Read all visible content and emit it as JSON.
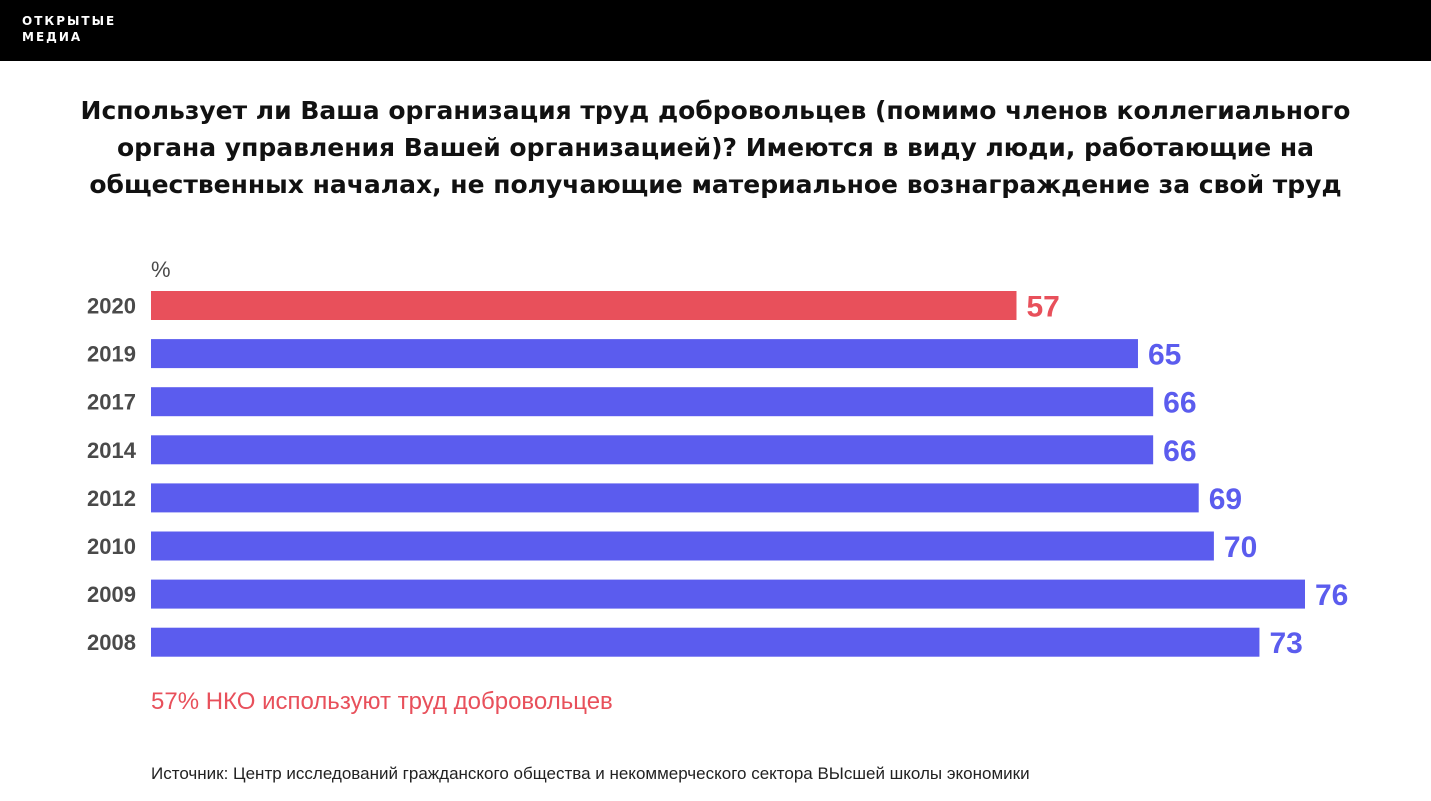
{
  "brand": {
    "line1": "ОТКРЫТЫЕ",
    "line2": "МЕДИА"
  },
  "title": "Использует ли Ваша организация труд добровольцев (помимо членов коллегиального органа управления Вашей организацией)? Имеются в виду люди, работающие на общественных началах, не получающие материальное вознаграждение за свой труд",
  "colors": {
    "highlight": "#e8505b",
    "bar": "#5b5cee",
    "label": "#4a4a4a",
    "topbar": "#000000"
  },
  "chart_data": {
    "type": "bar",
    "orientation": "horizontal",
    "unit_label": "%",
    "categories": [
      "2020",
      "2019",
      "2017",
      "2014",
      "2012",
      "2010",
      "2009",
      "2008"
    ],
    "values": [
      57,
      65,
      66,
      66,
      69,
      70,
      76,
      73
    ],
    "highlight_category": "2020",
    "xlim": [
      0,
      76
    ],
    "grid": false,
    "data_labels": true
  },
  "note": "57% НКО используют труд добровольцев",
  "source": "Источник: Центр исследований гражданского общества и некоммерческого сектора ВЫсшей школы экономики"
}
